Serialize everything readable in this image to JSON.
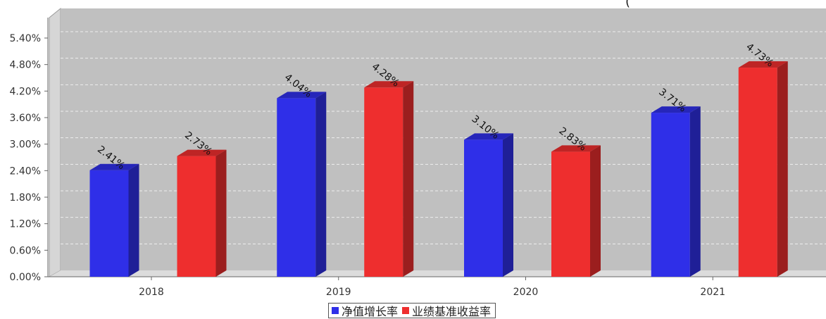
{
  "chart_data": {
    "type": "bar",
    "categories": [
      "2018",
      "2019",
      "2020",
      "2021"
    ],
    "series": [
      {
        "name": "净值增长率",
        "color": "#2f2fe8",
        "values": [
          2.41,
          4.04,
          3.1,
          3.71
        ],
        "labels": [
          "2.41%",
          "4.04%",
          "3.10%",
          "3.71%"
        ]
      },
      {
        "name": "业绩基准收益率",
        "color": "#ee2e2e",
        "values": [
          2.73,
          4.28,
          2.83,
          4.73
        ],
        "labels": [
          "2.73%",
          "4.28%",
          "2.83%",
          "4.73%"
        ]
      }
    ],
    "yticks": [
      "0.00%",
      "0.60%",
      "1.20%",
      "1.80%",
      "2.40%",
      "3.00%",
      "3.60%",
      "4.20%",
      "4.80%",
      "5.40%"
    ],
    "ylim": [
      0,
      5.4
    ],
    "grid": true,
    "legend_position": "bottom-center",
    "top_right_fragment": "(",
    "title": "",
    "xlabel": "",
    "ylabel": ""
  }
}
